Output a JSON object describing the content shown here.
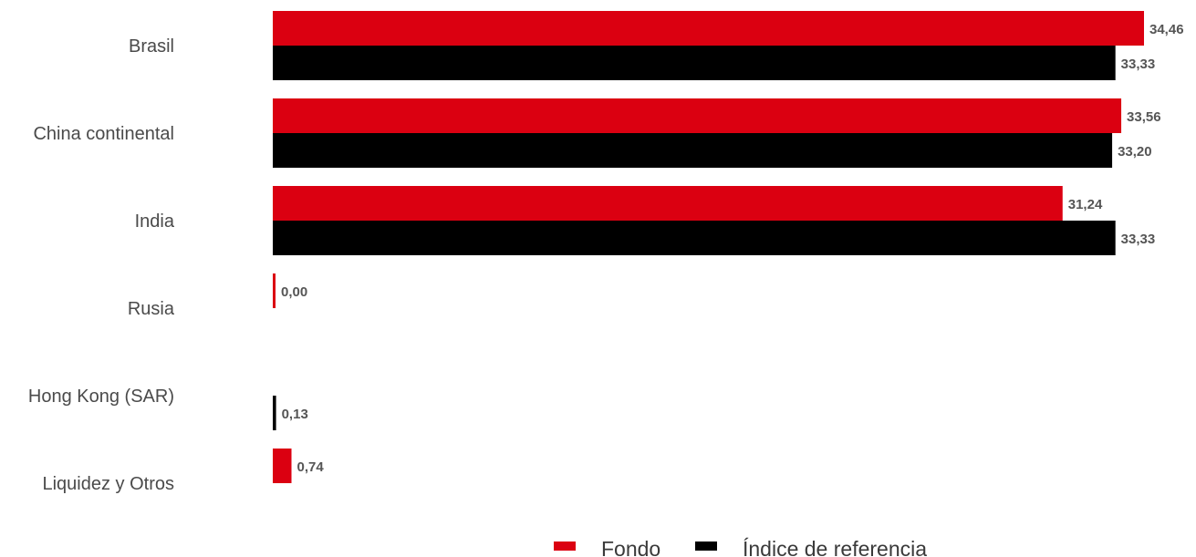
{
  "chart_data": {
    "type": "bar",
    "orientation": "horizontal",
    "categories": [
      "Brasil",
      "China continental",
      "India",
      "Rusia",
      "Hong Kong (SAR)",
      "Liquidez y Otros"
    ],
    "series": [
      {
        "name": "Fondo",
        "color": "#db0011",
        "values": [
          34.46,
          33.56,
          31.24,
          0.0,
          null,
          0.74
        ],
        "labels": [
          "34,46",
          "33,56",
          "31,24",
          "0,00",
          "",
          "0,74"
        ]
      },
      {
        "name": "Índice de referencia",
        "color": "#000000",
        "values": [
          33.33,
          33.2,
          33.33,
          null,
          0.13,
          null
        ],
        "labels": [
          "33,33",
          "33,20",
          "33,33",
          "",
          "0,13",
          ""
        ]
      }
    ],
    "xlim": [
      0,
      34.46
    ],
    "grid": false,
    "legend_position": "bottom"
  }
}
